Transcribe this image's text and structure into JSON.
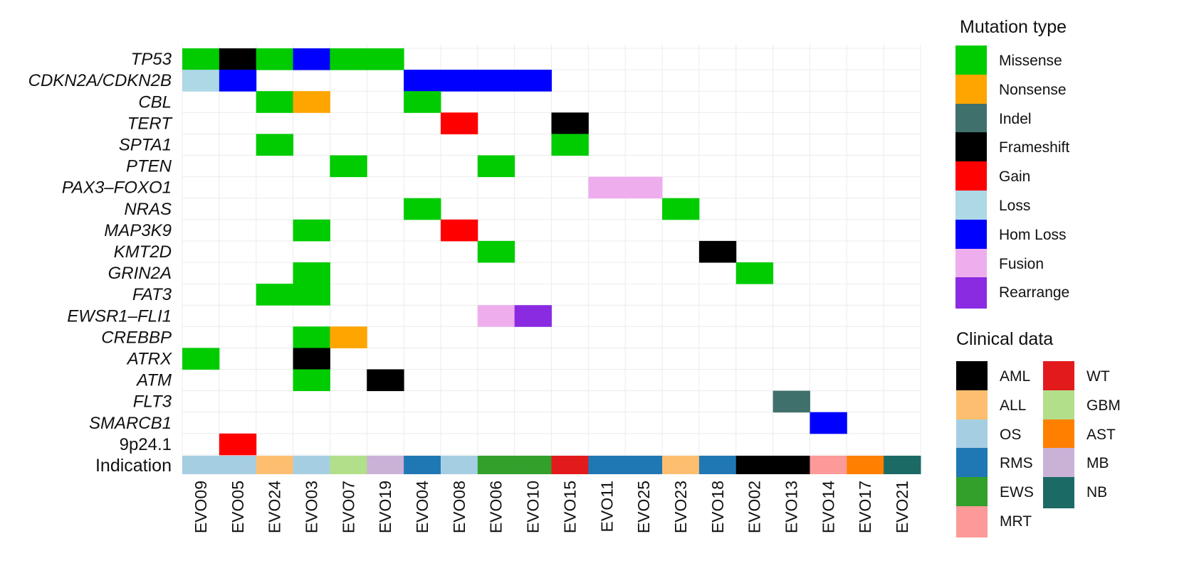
{
  "chart_data": {
    "type": "heatmap",
    "samples": [
      "EVO09",
      "EVO05",
      "EVO24",
      "EVO03",
      "EVO07",
      "EVO19",
      "EVO04",
      "EVO08",
      "EVO06",
      "EVO10",
      "EVO15",
      "EVO11",
      "EVO25",
      "EVO23",
      "EVO18",
      "EVO02",
      "EVO13",
      "EVO14",
      "EVO17",
      "EVO21"
    ],
    "genes": [
      {
        "name": "TP53",
        "italic": true
      },
      {
        "name": "CDKN2A/CDKN2B",
        "italic": true
      },
      {
        "name": "CBL",
        "italic": true
      },
      {
        "name": "TERT",
        "italic": true
      },
      {
        "name": "SPTA1",
        "italic": true
      },
      {
        "name": "PTEN",
        "italic": true
      },
      {
        "name": "PAX3–FOXO1",
        "italic": true
      },
      {
        "name": "NRAS",
        "italic": true
      },
      {
        "name": "MAP3K9",
        "italic": true
      },
      {
        "name": "KMT2D",
        "italic": true
      },
      {
        "name": "GRIN2A",
        "italic": true
      },
      {
        "name": "FAT3",
        "italic": true
      },
      {
        "name": "EWSR1–FLI1",
        "italic": true
      },
      {
        "name": "CREBBP",
        "italic": true
      },
      {
        "name": "ATRX",
        "italic": true
      },
      {
        "name": "ATM",
        "italic": true
      },
      {
        "name": "FLT3",
        "italic": true
      },
      {
        "name": "SMARCB1",
        "italic": true
      },
      {
        "name": "9p24.1",
        "italic": false
      }
    ],
    "mutations": [
      {
        "gene": "TP53",
        "sample": "EVO09",
        "type": "Missense"
      },
      {
        "gene": "TP53",
        "sample": "EVO05",
        "type": "Frameshift"
      },
      {
        "gene": "TP53",
        "sample": "EVO24",
        "type": "Missense"
      },
      {
        "gene": "TP53",
        "sample": "EVO03",
        "type": "Hom Loss"
      },
      {
        "gene": "TP53",
        "sample": "EVO07",
        "type": "Missense"
      },
      {
        "gene": "TP53",
        "sample": "EVO19",
        "type": "Missense"
      },
      {
        "gene": "CDKN2A/CDKN2B",
        "sample": "EVO09",
        "type": "Loss"
      },
      {
        "gene": "CDKN2A/CDKN2B",
        "sample": "EVO05",
        "type": "Hom Loss"
      },
      {
        "gene": "CDKN2A/CDKN2B",
        "sample": "EVO04",
        "type": "Hom Loss"
      },
      {
        "gene": "CDKN2A/CDKN2B",
        "sample": "EVO08",
        "type": "Hom Loss"
      },
      {
        "gene": "CDKN2A/CDKN2B",
        "sample": "EVO06",
        "type": "Hom Loss"
      },
      {
        "gene": "CDKN2A/CDKN2B",
        "sample": "EVO10",
        "type": "Hom Loss"
      },
      {
        "gene": "CBL",
        "sample": "EVO24",
        "type": "Missense"
      },
      {
        "gene": "CBL",
        "sample": "EVO03",
        "type": "Nonsense"
      },
      {
        "gene": "CBL",
        "sample": "EVO04",
        "type": "Missense"
      },
      {
        "gene": "TERT",
        "sample": "EVO08",
        "type": "Gain"
      },
      {
        "gene": "TERT",
        "sample": "EVO15",
        "type": "Frameshift"
      },
      {
        "gene": "SPTA1",
        "sample": "EVO24",
        "type": "Missense"
      },
      {
        "gene": "SPTA1",
        "sample": "EVO15",
        "type": "Missense"
      },
      {
        "gene": "PTEN",
        "sample": "EVO07",
        "type": "Missense"
      },
      {
        "gene": "PTEN",
        "sample": "EVO06",
        "type": "Missense"
      },
      {
        "gene": "PAX3–FOXO1",
        "sample": "EVO11",
        "type": "Fusion"
      },
      {
        "gene": "PAX3–FOXO1",
        "sample": "EVO25",
        "type": "Fusion"
      },
      {
        "gene": "NRAS",
        "sample": "EVO04",
        "type": "Missense"
      },
      {
        "gene": "NRAS",
        "sample": "EVO23",
        "type": "Missense"
      },
      {
        "gene": "MAP3K9",
        "sample": "EVO03",
        "type": "Missense"
      },
      {
        "gene": "MAP3K9",
        "sample": "EVO08",
        "type": "Gain"
      },
      {
        "gene": "KMT2D",
        "sample": "EVO06",
        "type": "Missense"
      },
      {
        "gene": "KMT2D",
        "sample": "EVO18",
        "type": "Frameshift"
      },
      {
        "gene": "GRIN2A",
        "sample": "EVO03",
        "type": "Missense"
      },
      {
        "gene": "GRIN2A",
        "sample": "EVO02",
        "type": "Missense"
      },
      {
        "gene": "FAT3",
        "sample": "EVO24",
        "type": "Missense"
      },
      {
        "gene": "FAT3",
        "sample": "EVO03",
        "type": "Missense"
      },
      {
        "gene": "EWSR1–FLI1",
        "sample": "EVO06",
        "type": "Fusion"
      },
      {
        "gene": "EWSR1–FLI1",
        "sample": "EVO10",
        "type": "Rearrange"
      },
      {
        "gene": "CREBBP",
        "sample": "EVO03",
        "type": "Missense"
      },
      {
        "gene": "CREBBP",
        "sample": "EVO07",
        "type": "Nonsense"
      },
      {
        "gene": "ATRX",
        "sample": "EVO09",
        "type": "Missense"
      },
      {
        "gene": "ATRX",
        "sample": "EVO03",
        "type": "Frameshift"
      },
      {
        "gene": "ATM",
        "sample": "EVO03",
        "type": "Missense"
      },
      {
        "gene": "ATM",
        "sample": "EVO19",
        "type": "Frameshift"
      },
      {
        "gene": "FLT3",
        "sample": "EVO13",
        "type": "Indel"
      },
      {
        "gene": "SMARCB1",
        "sample": "EVO14",
        "type": "Hom Loss"
      },
      {
        "gene": "9p24.1",
        "sample": "EVO05",
        "type": "Gain"
      }
    ],
    "indication_label": "Indication",
    "indication": [
      "OS",
      "OS",
      "ALL",
      "OS",
      "GBM",
      "MB",
      "RMS",
      "OS",
      "EWS",
      "EWS",
      "WT",
      "RMS",
      "RMS",
      "ALL",
      "RMS",
      "AML",
      "AML",
      "MRT",
      "AST",
      "NB"
    ],
    "mutation_legend": {
      "title": "Mutation type",
      "items": [
        {
          "label": "Missense",
          "color": "#00cc00"
        },
        {
          "label": "Nonsense",
          "color": "#ffa500"
        },
        {
          "label": "Indel",
          "color": "#3f706c"
        },
        {
          "label": "Frameshift",
          "color": "#000000"
        },
        {
          "label": "Gain",
          "color": "#ff0000"
        },
        {
          "label": "Loss",
          "color": "#add8e6"
        },
        {
          "label": "Hom Loss",
          "color": "#0000ff"
        },
        {
          "label": "Fusion",
          "color": "#eeaeee"
        },
        {
          "label": "Rearrange",
          "color": "#8a2be2"
        }
      ]
    },
    "clinical_legend": {
      "title": "Clinical data",
      "items": [
        {
          "label": "AML",
          "color": "#000000"
        },
        {
          "label": "ALL",
          "color": "#fdbf6f"
        },
        {
          "label": "OS",
          "color": "#a6cee3"
        },
        {
          "label": "RMS",
          "color": "#1f78b4"
        },
        {
          "label": "EWS",
          "color": "#33a02c"
        },
        {
          "label": "MRT",
          "color": "#fb9a99"
        },
        {
          "label": "WT",
          "color": "#e31a1c"
        },
        {
          "label": "GBM",
          "color": "#b2df8a"
        },
        {
          "label": "AST",
          "color": "#ff7f00"
        },
        {
          "label": "MB",
          "color": "#cab2d6"
        },
        {
          "label": "NB",
          "color": "#1b6a66"
        }
      ]
    },
    "grid": true
  }
}
